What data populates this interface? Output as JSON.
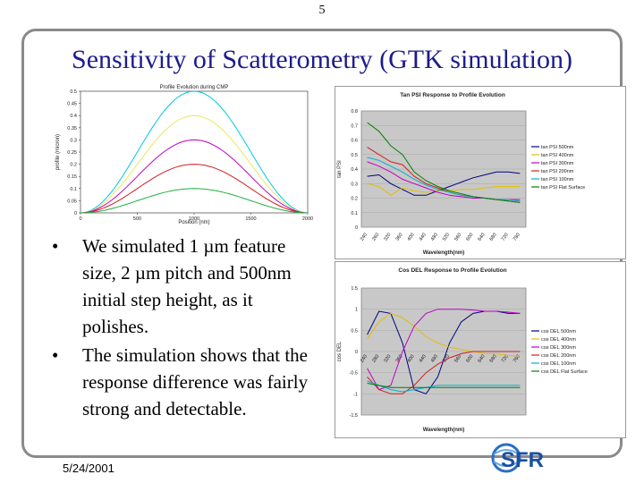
{
  "page_number": "5",
  "title": "Sensitivity of Scatterometry (GTK simulation)",
  "bullets": [
    "We simulated 1 µm feature size, 2 µm pitch and 500nm initial step height, as it polishes.",
    "The simulation shows that the response difference was fairly strong and detectable."
  ],
  "footer_date": "5/24/2001",
  "logo_text": "SFR",
  "chart_data": [
    {
      "type": "line",
      "title": "Profile Evolution during CMP",
      "xlabel": "Position (nm)",
      "ylabel": "profile (micron)",
      "xlim": [
        0,
        2000
      ],
      "ylim": [
        0,
        0.5
      ],
      "xticks": [
        "0",
        "500",
        "1000",
        "1500",
        "2000"
      ],
      "yticks": [
        "0",
        "0.05",
        "0.1",
        "0.15",
        "0.2",
        "0.25",
        "0.3",
        "0.35",
        "0.4",
        "0.45",
        "0.5"
      ],
      "series": [
        {
          "peak": 0.5,
          "color": "#00c8e0"
        },
        {
          "peak": 0.4,
          "color": "#e8e860"
        },
        {
          "peak": 0.3,
          "color": "#c000c0"
        },
        {
          "peak": 0.2,
          "color": "#d02020"
        },
        {
          "peak": 0.1,
          "color": "#20b040"
        }
      ]
    },
    {
      "type": "line",
      "title": "Tan PSI Response to Profile Evolution",
      "xlabel": "Wavelength(nm)",
      "ylabel": "tan PSI",
      "ylim": [
        0,
        0.8
      ],
      "yticks": [
        "0",
        "0.1",
        "0.2",
        "0.3",
        "0.4",
        "0.5",
        "0.6",
        "0.7",
        "0.8"
      ],
      "xticks": [
        "240",
        "260",
        "320",
        "360",
        "400",
        "440",
        "480",
        "520",
        "560",
        "600",
        "640",
        "680",
        "720",
        "780"
      ],
      "series": [
        {
          "name": "tan PSI 500nm",
          "color": "#000080",
          "values": [
            0.35,
            0.36,
            0.3,
            0.26,
            0.22,
            0.22,
            0.25,
            0.28,
            0.31,
            0.34,
            0.36,
            0.38,
            0.38,
            0.37
          ]
        },
        {
          "name": "tan PSI 400nm",
          "color": "#e0c000",
          "values": [
            0.3,
            0.28,
            0.22,
            0.27,
            0.25,
            0.24,
            0.25,
            0.25,
            0.26,
            0.26,
            0.27,
            0.28,
            0.28,
            0.28
          ]
        },
        {
          "name": "tan PSI 300nm",
          "color": "#c000c0",
          "values": [
            0.45,
            0.42,
            0.38,
            0.33,
            0.3,
            0.27,
            0.24,
            0.22,
            0.21,
            0.2,
            0.2,
            0.19,
            0.19,
            0.19
          ]
        },
        {
          "name": "tan PSI 200nm",
          "color": "#d02020",
          "values": [
            0.55,
            0.5,
            0.45,
            0.43,
            0.35,
            0.3,
            0.27,
            0.24,
            0.22,
            0.21,
            0.2,
            0.19,
            0.18,
            0.17
          ]
        },
        {
          "name": "tan PSI 100nm",
          "color": "#00b0d0",
          "values": [
            0.48,
            0.46,
            0.42,
            0.38,
            0.33,
            0.29,
            0.26,
            0.24,
            0.22,
            0.21,
            0.2,
            0.19,
            0.19,
            0.18
          ]
        },
        {
          "name": "tan PSI Flat Surface",
          "color": "#008000",
          "values": [
            0.72,
            0.66,
            0.56,
            0.5,
            0.38,
            0.32,
            0.28,
            0.25,
            0.23,
            0.21,
            0.2,
            0.19,
            0.18,
            0.17
          ]
        }
      ]
    },
    {
      "type": "line",
      "title": "Cos DEL Response to Profile Evolution",
      "xlabel": "Wavelength(nm)",
      "ylabel": "cos DEL",
      "ylim": [
        -1.5,
        1.5
      ],
      "yticks": [
        "-1.5",
        "-1",
        "-0.5",
        "0",
        "0.5",
        "1",
        "1.5"
      ],
      "xticks": [
        "240",
        "280",
        "320",
        "360",
        "400",
        "440",
        "480",
        "520",
        "560",
        "600",
        "640",
        "680",
        "720",
        "760"
      ],
      "series": [
        {
          "name": "cos DEL 500nm",
          "color": "#000080",
          "values": [
            0.4,
            0.95,
            0.9,
            0.2,
            -0.9,
            -1.0,
            -0.6,
            0.2,
            0.7,
            0.9,
            0.95,
            0.95,
            0.9,
            0.9
          ]
        },
        {
          "name": "cos DEL 400nm",
          "color": "#e0c000",
          "values": [
            0.3,
            0.7,
            0.9,
            0.8,
            0.6,
            0.35,
            0.2,
            0.1,
            0.05,
            0.0,
            -0.05,
            -0.05,
            -0.1,
            -0.1
          ]
        },
        {
          "name": "cos DEL 300nm",
          "color": "#c000c0",
          "values": [
            -0.4,
            -0.9,
            -0.8,
            0.0,
            0.6,
            0.9,
            1.0,
            1.0,
            1.0,
            0.98,
            0.95,
            0.95,
            0.93,
            0.9
          ]
        },
        {
          "name": "cos DEL 200nm",
          "color": "#d02020",
          "values": [
            -0.6,
            -0.9,
            -1.0,
            -1.0,
            -0.8,
            -0.5,
            -0.3,
            -0.15,
            -0.05,
            0.0,
            0.0,
            0.0,
            0.0,
            0.0
          ]
        },
        {
          "name": "cos DEL 100nm",
          "color": "#00b0d0",
          "values": [
            -0.7,
            -0.8,
            -0.9,
            -0.95,
            -0.9,
            -0.85,
            -0.8,
            -0.8,
            -0.8,
            -0.8,
            -0.8,
            -0.8,
            -0.8,
            -0.8
          ]
        },
        {
          "name": "cos DEL Flat Surface",
          "color": "#008000",
          "values": [
            -0.75,
            -0.8,
            -0.85,
            -0.85,
            -0.85,
            -0.85,
            -0.85,
            -0.85,
            -0.85,
            -0.85,
            -0.85,
            -0.85,
            -0.85,
            -0.85
          ]
        }
      ]
    }
  ]
}
